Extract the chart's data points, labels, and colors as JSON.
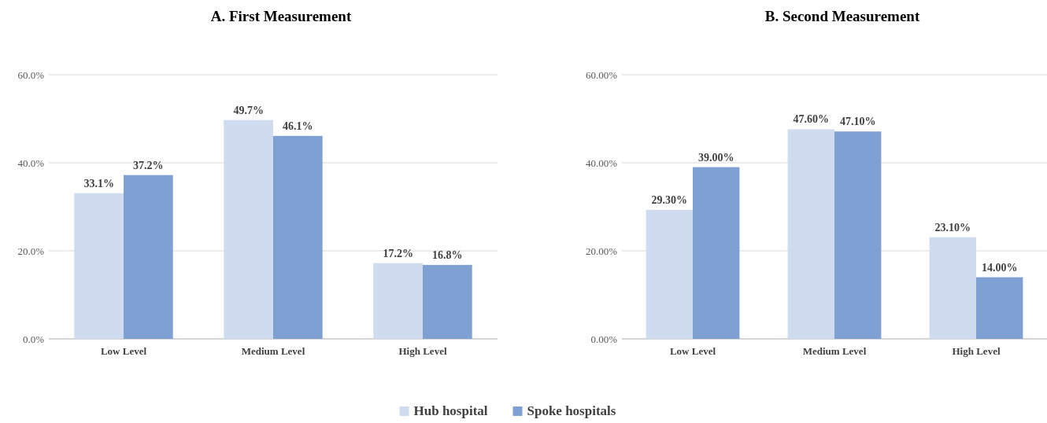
{
  "chart_data": [
    {
      "type": "bar",
      "title": "A. First Measurement",
      "categories": [
        "Low Level",
        "Medium Level",
        "High Level"
      ],
      "series": [
        {
          "name": "Hub hospital",
          "color": "#cfdcef",
          "values": [
            33.1,
            49.7,
            17.2
          ],
          "value_labels": [
            "33.1%",
            "49.7%",
            "17.2%"
          ]
        },
        {
          "name": "Spoke hospitals",
          "color": "#7fa0d2",
          "values": [
            37.2,
            46.1,
            16.8
          ],
          "value_labels": [
            "37.2%",
            "46.1%",
            "16.8%"
          ]
        }
      ],
      "ylim": [
        0,
        60
      ],
      "yticks": [
        {
          "value": 0,
          "label": "0.0%"
        },
        {
          "value": 20,
          "label": "20.0%"
        },
        {
          "value": 40,
          "label": "40.0%"
        },
        {
          "value": 60,
          "label": "60.0%"
        }
      ],
      "grid": "y",
      "legend": "bottom"
    },
    {
      "type": "bar",
      "title": "B. Second Measurement",
      "categories": [
        "Low Level",
        "Medium Level",
        "High Level"
      ],
      "series": [
        {
          "color": "#cfdcef",
          "values": [
            29.3,
            47.6,
            23.1
          ],
          "value_labels": [
            "29.30%",
            "47.60%",
            "23.10%"
          ]
        },
        {
          "color": "#7fa0d2",
          "values": [
            39.0,
            47.1,
            14.0
          ],
          "value_labels": [
            "39.00%",
            "47.10%",
            "14.00%"
          ]
        }
      ],
      "ylim": [
        0,
        60
      ],
      "yticks": [
        {
          "value": 0,
          "label": "0.00%"
        },
        {
          "value": 20,
          "label": "20.00%"
        },
        {
          "value": 40,
          "label": "40.00%"
        },
        {
          "value": 60,
          "label": "60.00%"
        }
      ],
      "grid": "y"
    }
  ]
}
